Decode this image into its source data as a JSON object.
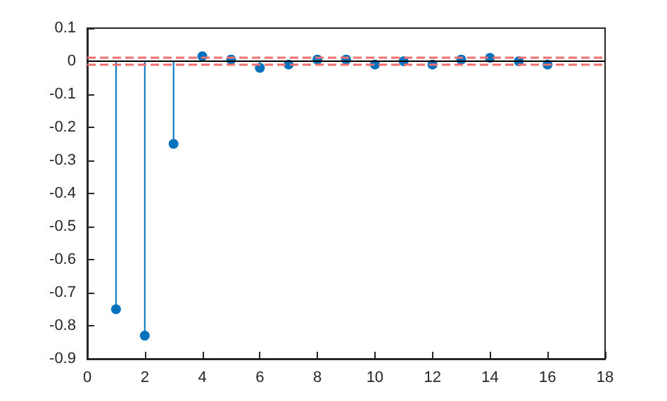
{
  "chart_data": {
    "type": "lollipop",
    "color": "#0072bd",
    "marker": "circle",
    "x": [
      1,
      2,
      3,
      4,
      5,
      6,
      7,
      8,
      9,
      10,
      11,
      12,
      13,
      14,
      15,
      16
    ],
    "values": [
      -0.75,
      -0.83,
      -0.25,
      0.015,
      0.005,
      -0.02,
      -0.01,
      0.005,
      0.005,
      -0.01,
      0,
      -0.01,
      0.005,
      0.01,
      0,
      -0.01
    ],
    "xlim": [
      0,
      18
    ],
    "xticks": [
      0,
      2,
      4,
      6,
      8,
      10,
      12,
      14,
      16,
      18
    ],
    "ylim": [
      -0.9,
      0.1
    ],
    "yticks": [
      -0.9,
      -0.8,
      -0.7,
      -0.6,
      -0.5,
      -0.4,
      -0.3,
      -0.2,
      -0.1,
      0,
      0.1
    ],
    "ref_lines": [
      {
        "axis": "y",
        "value": 0,
        "color": "#000000",
        "line_style": "solid"
      },
      {
        "axis": "y",
        "value": 0.015,
        "color": "#f07070",
        "line_style": "dashed"
      },
      {
        "axis": "y",
        "value": -0.015,
        "color": "#f07070",
        "line_style": "dashed"
      }
    ],
    "grid": false
  }
}
